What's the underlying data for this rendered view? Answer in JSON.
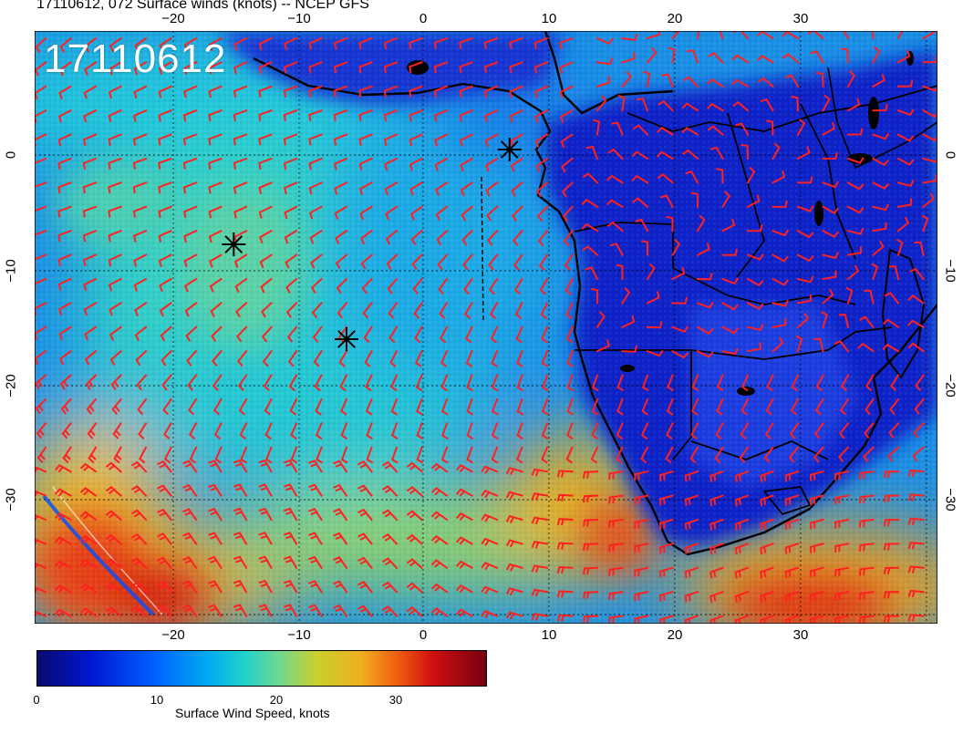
{
  "title": "17110612, 072 Surface winds (knots) -- NCEP GFS",
  "run_stamp": "17110612",
  "axes": {
    "lon_ticks": [
      "−20",
      "−10",
      "0",
      "10",
      "20",
      "30"
    ],
    "lat_ticks": [
      "0",
      "−10",
      "−20",
      "−30"
    ]
  },
  "colorbar": {
    "label": "Surface Wind Speed, knots",
    "ticks": [
      "0",
      "10",
      "20",
      "30"
    ],
    "range_knots": [
      0,
      36
    ]
  },
  "map_extent": {
    "lon": [
      -30,
      42
    ],
    "lat": [
      -40,
      10
    ]
  },
  "markers": [
    {
      "name": "star-marker-1",
      "lon": 7,
      "lat": 0
    },
    {
      "name": "star-marker-2",
      "lon": -15,
      "lat": -8
    },
    {
      "name": "star-marker-3",
      "lon": -6,
      "lat": -16
    }
  ],
  "colors": {
    "barb": "#ff2020",
    "coast": "#000000",
    "ocean_calm": "#0a2ad8",
    "ocean_moderate": "#1ab4e6",
    "strong": "#e8b020",
    "extreme": "#c81818"
  }
}
